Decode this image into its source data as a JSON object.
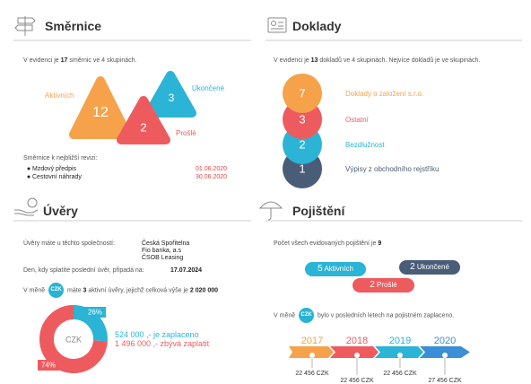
{
  "smernice": {
    "title": "Směrnice",
    "intro": [
      "V evidenci je ",
      "17",
      " směrnic ve 4 skupinách."
    ],
    "groups": [
      {
        "label": "Aktivních",
        "count": "12"
      },
      {
        "label": "Ukončené",
        "count": "3"
      },
      {
        "label": "Prošlé",
        "count": "2"
      }
    ],
    "revision_title": "Směrnice k nejbližší revizi:",
    "revisions": [
      {
        "name": "Mzdový předpis",
        "date": "01.06.2020"
      },
      {
        "name": "Cestovní náhrady",
        "date": "30.06.2020"
      }
    ]
  },
  "doklady": {
    "title": "Doklady",
    "intro": [
      "V evidenci je ",
      "13",
      " dokladů ve 4 skupinách. Nejvíce dokladů je ve skupinách."
    ],
    "groups": [
      {
        "count": "7",
        "label": "Doklady o založení s.r.o."
      },
      {
        "count": "3",
        "label": "Ostatní"
      },
      {
        "count": "2",
        "label": "Bezdlužnost"
      },
      {
        "count": "1",
        "label": "Výpisy z obchodního rejstříku"
      }
    ]
  },
  "uvery": {
    "title": "Úvěry",
    "companies_label": "Úvěry máte u těchto společností:",
    "companies": [
      "Česká Spořitelna",
      "Fio banka, a.s",
      "ČSOB Leasing"
    ],
    "last_label": "Den, kdy splatíte poslední úvěr, připadá na:",
    "last_date": "17.07.2024",
    "summary": [
      "V měně ",
      "CZK",
      " máte ",
      "3",
      " aktivní úvěry, jejichž celková výše je ",
      "2 020 000"
    ],
    "donut": {
      "center": "CZK",
      "values": [
        26,
        74
      ],
      "value_labels": [
        "26%",
        "74%"
      ]
    },
    "paid": "524 000 ,- je zaplaceno",
    "remaining": "1 496 000 ,- zbývá zaplatit"
  },
  "pojisteni": {
    "title": "Pojištění",
    "count_text": [
      "Počet všech evidovaných pojištění je ",
      "9"
    ],
    "statuses": [
      {
        "count": "5",
        "label": "Aktivních"
      },
      {
        "count": "2",
        "label": "Ukončené"
      },
      {
        "count": "2",
        "label": "Prošlé"
      }
    ],
    "currency_text": [
      "V měně ",
      "CZK",
      " bylo v posledních letech na pojistném zaplaceno."
    ],
    "timeline": [
      {
        "year": "2017",
        "amount": "22 456 CZK"
      },
      {
        "year": "2018",
        "amount": "22 456 CZK"
      },
      {
        "year": "2019",
        "amount": "22 456 CZK"
      },
      {
        "year": "2020",
        "amount": "27 456 CZK"
      }
    ]
  }
}
